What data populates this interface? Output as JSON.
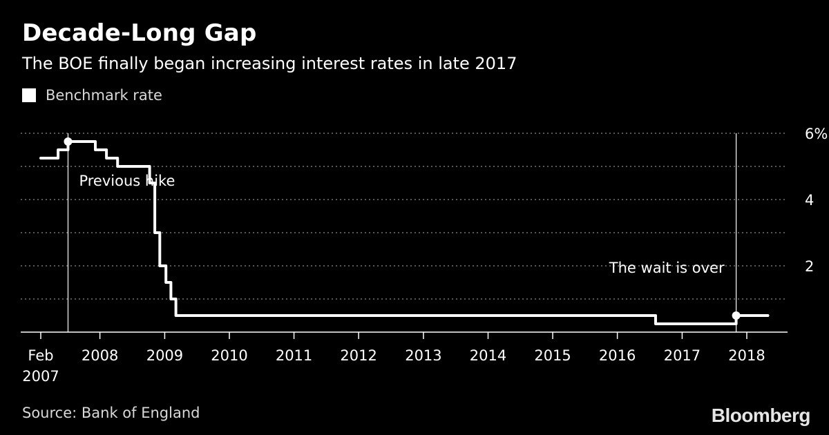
{
  "header": {
    "title": "Decade-Long Gap",
    "subtitle": "The BOE finally began increasing interest rates in late 2017"
  },
  "legend": {
    "label": "Benchmark rate"
  },
  "footer": {
    "source": "Source: Bank of England",
    "brand": "Bloomberg"
  },
  "colors": {
    "background": "#000000",
    "line": "#ffffff",
    "grid": "#8c8c8c",
    "text": "#ffffff"
  },
  "chart_data": {
    "type": "line",
    "title": "Decade-Long Gap",
    "subtitle": "The BOE finally began increasing interest rates in late 2017",
    "xlim": [
      "2007-02-01",
      "2018-06-01"
    ],
    "ylim": [
      0,
      6
    ],
    "y_axis_position": "right",
    "y_ticks": [
      {
        "value": 6,
        "label": "6%"
      },
      {
        "value": 4,
        "label": "4"
      },
      {
        "value": 2,
        "label": "2"
      }
    ],
    "y_gridlines": [
      1,
      2,
      3,
      4,
      5,
      6
    ],
    "x_ticks": [
      {
        "date": "2007-02-01",
        "label": "Feb",
        "label2": "2007"
      },
      {
        "date": "2008-01-01",
        "label": "2008"
      },
      {
        "date": "2009-01-01",
        "label": "2009"
      },
      {
        "date": "2010-01-01",
        "label": "2010"
      },
      {
        "date": "2011-01-01",
        "label": "2011"
      },
      {
        "date": "2012-01-01",
        "label": "2012"
      },
      {
        "date": "2013-01-01",
        "label": "2013"
      },
      {
        "date": "2014-01-01",
        "label": "2014"
      },
      {
        "date": "2015-01-01",
        "label": "2015"
      },
      {
        "date": "2016-01-01",
        "label": "2016"
      },
      {
        "date": "2017-01-01",
        "label": "2017"
      },
      {
        "date": "2018-01-01",
        "label": "2018"
      }
    ],
    "grid": true,
    "legend_position": "top-left",
    "series": [
      {
        "name": "Benchmark rate",
        "step": true,
        "points": [
          {
            "x": "2007-02-01",
            "y": 5.25
          },
          {
            "x": "2007-05-10",
            "y": 5.5
          },
          {
            "x": "2007-07-05",
            "y": 5.75
          },
          {
            "x": "2007-12-06",
            "y": 5.5
          },
          {
            "x": "2008-02-07",
            "y": 5.25
          },
          {
            "x": "2008-04-10",
            "y": 5.0
          },
          {
            "x": "2008-10-08",
            "y": 4.5
          },
          {
            "x": "2008-11-06",
            "y": 3.0
          },
          {
            "x": "2008-12-04",
            "y": 2.0
          },
          {
            "x": "2009-01-08",
            "y": 1.5
          },
          {
            "x": "2009-02-05",
            "y": 1.0
          },
          {
            "x": "2009-03-05",
            "y": 0.5
          },
          {
            "x": "2016-08-04",
            "y": 0.25
          },
          {
            "x": "2017-11-02",
            "y": 0.5
          },
          {
            "x": "2018-04-30",
            "y": 0.5
          }
        ]
      }
    ],
    "annotations": [
      {
        "label": "Previous hike",
        "date": "2007-07-05",
        "y": 5.75
      },
      {
        "label": "The wait is over",
        "date": "2017-11-02",
        "y": 0.5
      }
    ]
  }
}
